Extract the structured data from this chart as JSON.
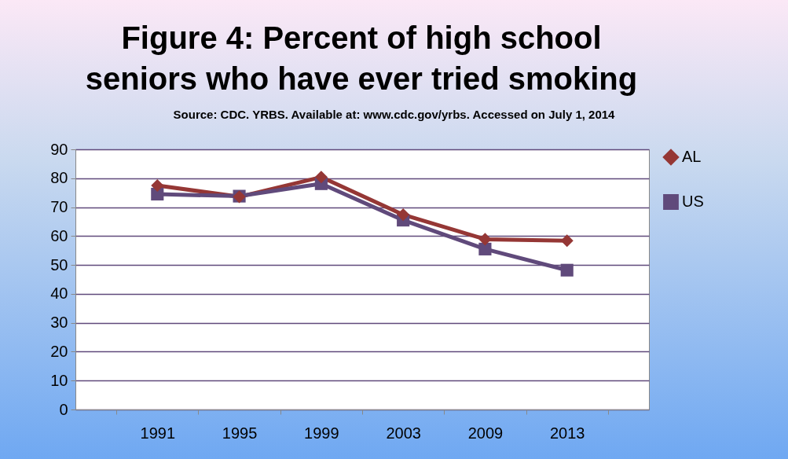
{
  "chart_data": {
    "type": "line",
    "title": "Figure 4: Percent of high school seniors who have ever tried smoking",
    "subtitle": "Source: CDC. YRBS. Available at: www.cdc.gov/yrbs. Accessed on July 1, 2014",
    "categories": [
      "1991",
      "1995",
      "1999",
      "2003",
      "2009",
      "2013"
    ],
    "series": [
      {
        "name": "AL",
        "color": "#953735",
        "marker": "diamond",
        "values": [
          77.5,
          73.6,
          80.4,
          67.4,
          58.9,
          58.4
        ]
      },
      {
        "name": "US",
        "color": "#604a7b",
        "marker": "square",
        "values": [
          74.5,
          73.8,
          78.1,
          65.5,
          55.5,
          48.2
        ]
      }
    ],
    "ylim": [
      0,
      90
    ],
    "yticks": [
      0,
      10,
      20,
      30,
      40,
      50,
      60,
      70,
      80,
      90
    ],
    "grid": "y",
    "legend": "right"
  }
}
